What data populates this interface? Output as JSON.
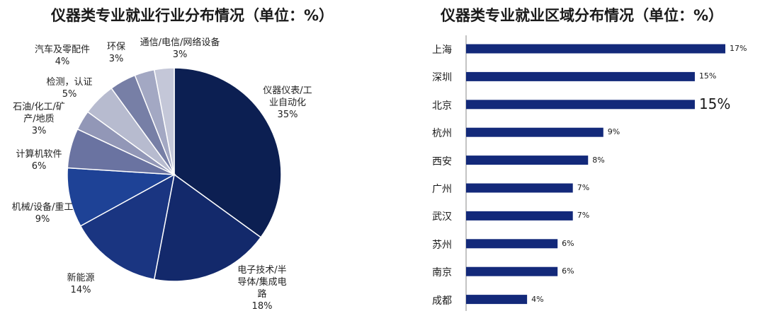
{
  "chart_data": [
    {
      "type": "pie",
      "title": "仪器类专业就业行业分布情况（单位：%）",
      "slices": [
        {
          "label": "仪器仪表/工\n业自动化",
          "value": 35,
          "value_label": "35%",
          "color": "#0c1f52"
        },
        {
          "label": "电子技术/半\n导体/集成电\n路",
          "value": 18,
          "value_label": "18%",
          "color": "#13296b"
        },
        {
          "label": "新能源",
          "value": 14,
          "value_label": "14%",
          "color": "#1a3581"
        },
        {
          "label": "机械/设备/重工",
          "value": 9,
          "value_label": "9%",
          "color": "#1e4296"
        },
        {
          "label": "计算机软件",
          "value": 6,
          "value_label": "6%",
          "color": "#6a73a1"
        },
        {
          "label": "石油/化工/矿\n产/地质",
          "value": 3,
          "value_label": "3%",
          "color": "#9297b7"
        },
        {
          "label": "检测，认证",
          "value": 5,
          "value_label": "5%",
          "color": "#b7bbcf"
        },
        {
          "label": "汽车及零配件",
          "value": 4,
          "value_label": "4%",
          "color": "#777fa6"
        },
        {
          "label": "环保",
          "value": 3,
          "value_label": "3%",
          "color": "#a3a8c3"
        },
        {
          "label": "通信/电信/网络设备",
          "value": 3,
          "value_label": "3%",
          "color": "#c4c7d8"
        }
      ]
    },
    {
      "type": "bar",
      "orientation": "horizontal",
      "title": "仪器类专业就业区域分布情况（单位：%）",
      "categories": [
        "上海",
        "深圳",
        "北京",
        "杭州",
        "西安",
        "广州",
        "武汉",
        "苏州",
        "南京",
        "成都"
      ],
      "values": [
        17,
        15,
        15,
        9,
        8,
        7,
        7,
        6,
        6,
        4
      ],
      "value_labels": [
        "17%",
        "15%",
        "15%",
        "9%",
        "8%",
        "7%",
        "7%",
        "6%",
        "6%",
        "4%"
      ],
      "color": "#13297a",
      "xlim": [
        0,
        17
      ]
    }
  ]
}
